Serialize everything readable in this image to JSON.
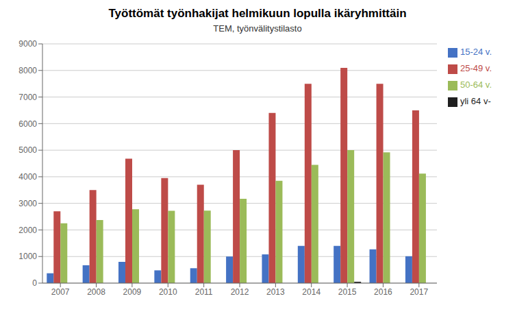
{
  "chart_data": {
    "type": "bar",
    "title": "Työttömät työnhakijat helmikuun lopulla ikäryhmittäin",
    "subtitle": "TEM, työnvälitystilasto",
    "categories": [
      "2007",
      "2008",
      "2009",
      "2010",
      "2011",
      "2012",
      "2013",
      "2014",
      "2015",
      "2016",
      "2017"
    ],
    "series": [
      {
        "name": "15-24 v.",
        "color": "#4472C4",
        "values": [
          370,
          670,
          800,
          480,
          560,
          1000,
          1080,
          1400,
          1400,
          1270,
          1010
        ]
      },
      {
        "name": "25-49 v.",
        "color": "#BE4B48",
        "values": [
          2700,
          3500,
          4680,
          3950,
          3700,
          5000,
          6400,
          7500,
          8100,
          7500,
          6500
        ]
      },
      {
        "name": "50-64 v.",
        "color": "#9BBB59",
        "values": [
          2250,
          2370,
          2780,
          2720,
          2730,
          3170,
          3850,
          4450,
          5000,
          4920,
          4120
        ]
      },
      {
        "name": "yli 64 v-",
        "color": "#1F1F1F",
        "values": [
          0,
          0,
          0,
          0,
          0,
          0,
          0,
          0,
          50,
          0,
          0
        ]
      }
    ],
    "ylim": [
      0,
      9000
    ],
    "yticks": [
      0,
      1000,
      2000,
      3000,
      4000,
      5000,
      6000,
      7000,
      8000,
      9000
    ],
    "grid": true,
    "legend": "right"
  }
}
